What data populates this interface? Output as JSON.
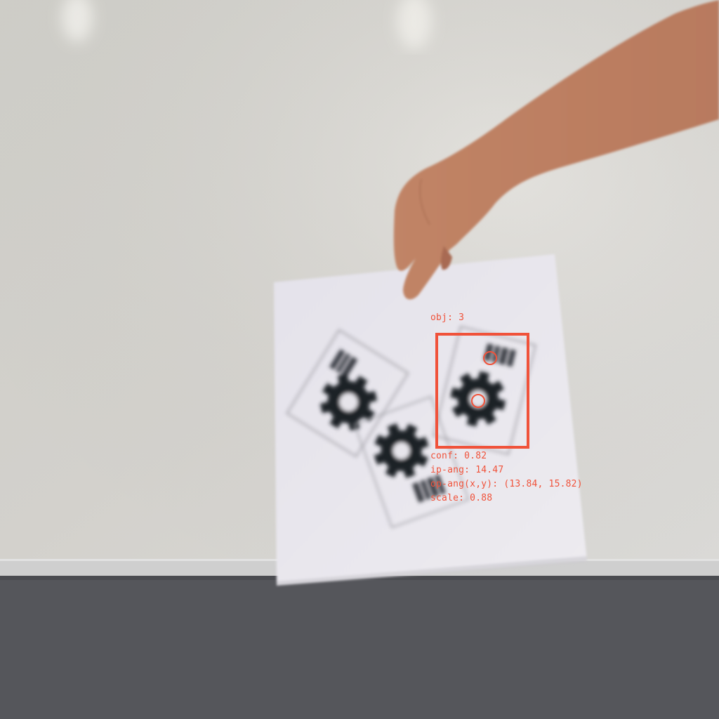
{
  "colors": {
    "overlay": "#f0523a",
    "wall": "#dcdbd6",
    "floor": "#55565b",
    "paper": "#e9e7ee",
    "gear": "#1f2026",
    "skin": "#c99070"
  },
  "icons": {
    "gear_marker": "gear-icon",
    "barcode_marker": "barcode-icon"
  },
  "detection": {
    "obj": "obj: 3",
    "conf": "conf: 0.82",
    "ip_ang": "ip-ang: 14.47",
    "op_ang": "op-ang(x,y): (13.84, 15.82)",
    "scale": "scale: 0.88"
  }
}
